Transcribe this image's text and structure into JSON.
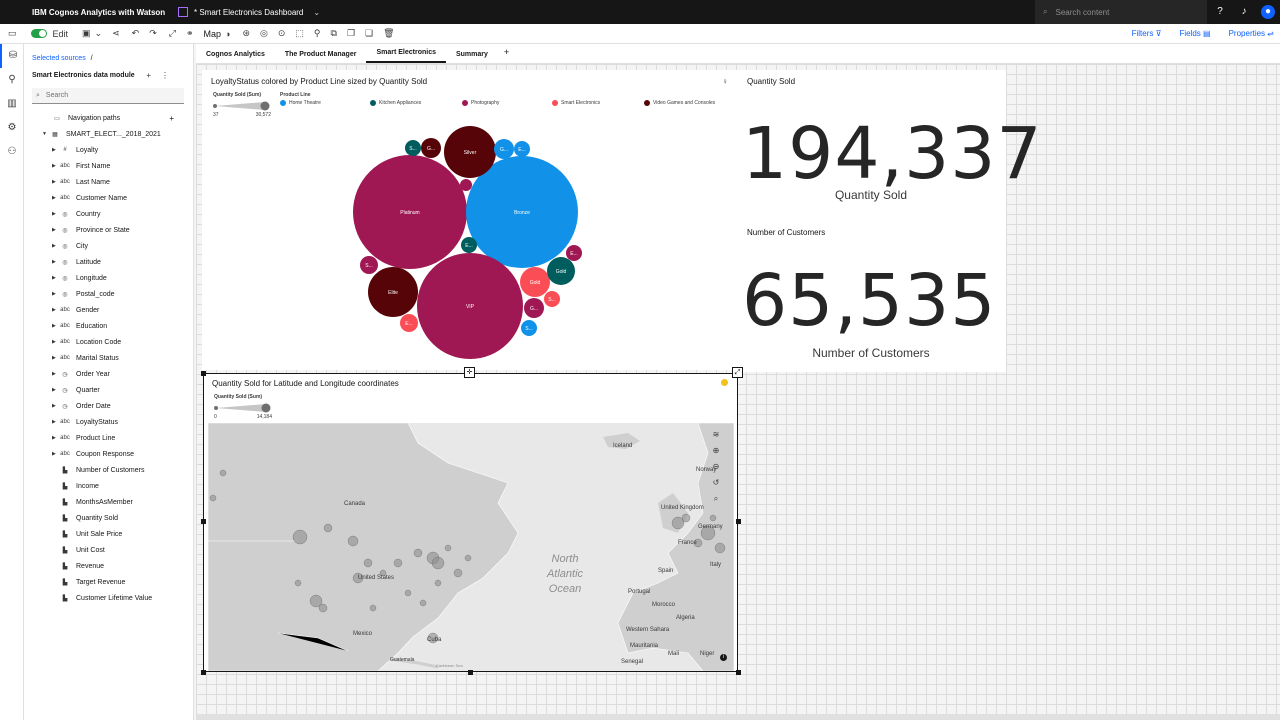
{
  "topbar": {
    "app_title": "IBM Cognos Analytics with Watson",
    "document_title": "* Smart Electronics Dashboard",
    "search_placeholder": "Search content"
  },
  "toolbar": {
    "edit_label": "Edit",
    "map_label": "Map",
    "filters_label": "Filters",
    "fields_label": "Fields",
    "properties_label": "Properties"
  },
  "panel": {
    "breadcrumb": "Selected sources",
    "breadcrumb_sep": "/",
    "module_title": "Smart Electronics data module",
    "search_placeholder": "Search",
    "nav_paths": "Navigation paths",
    "table_name": "SMART_ELECT..._2018_2021",
    "fields": [
      {
        "label": "Loyalty",
        "icon": "#",
        "caret": true
      },
      {
        "label": "First Name",
        "icon": "abc",
        "caret": true
      },
      {
        "label": "Last Name",
        "icon": "abc",
        "caret": true
      },
      {
        "label": "Customer Name",
        "icon": "abc",
        "caret": true
      },
      {
        "label": "Country",
        "icon": "◎",
        "caret": true
      },
      {
        "label": "Province or State",
        "icon": "◎",
        "caret": true
      },
      {
        "label": "City",
        "icon": "◎",
        "caret": true
      },
      {
        "label": "Latitude",
        "icon": "◎",
        "caret": true
      },
      {
        "label": "Longitude",
        "icon": "◎",
        "caret": true
      },
      {
        "label": "Postal_code",
        "icon": "◎",
        "caret": true
      },
      {
        "label": "Gender",
        "icon": "abc",
        "caret": true
      },
      {
        "label": "Education",
        "icon": "abc",
        "caret": true
      },
      {
        "label": "Location Code",
        "icon": "abc",
        "caret": true
      },
      {
        "label": "Marital Status",
        "icon": "abc",
        "caret": true
      },
      {
        "label": "Order Year",
        "icon": "◷",
        "caret": true
      },
      {
        "label": "Quarter",
        "icon": "◷",
        "caret": true
      },
      {
        "label": "Order Date",
        "icon": "◷",
        "caret": true
      },
      {
        "label": "LoyaltyStatus",
        "icon": "abc",
        "caret": true
      },
      {
        "label": "Product Line",
        "icon": "abc",
        "caret": true
      },
      {
        "label": "Coupon Response",
        "icon": "abc",
        "caret": true
      },
      {
        "label": "Number of Customers",
        "icon": "▙",
        "caret": false
      },
      {
        "label": "Income",
        "icon": "▙",
        "caret": false
      },
      {
        "label": "MonthsAsMember",
        "icon": "▙",
        "caret": false
      },
      {
        "label": "Quantity Sold",
        "icon": "▙",
        "caret": false
      },
      {
        "label": "Unit Sale Price",
        "icon": "▙",
        "caret": false
      },
      {
        "label": "Unit Cost",
        "icon": "▙",
        "caret": false
      },
      {
        "label": "Revenue",
        "icon": "▙",
        "caret": false
      },
      {
        "label": "Target Revenue",
        "icon": "▙",
        "caret": false
      },
      {
        "label": "Customer Lifetime Value",
        "icon": "▙",
        "caret": false
      }
    ]
  },
  "tabs": [
    "Cognos Analytics",
    "The Product Manager",
    "Smart Electronics",
    "Summary"
  ],
  "active_tab": "Smart Electronics",
  "colors": {
    "home_theatre": "#1192e8",
    "kitchen_appliances": "#005d5d",
    "photography": "#9f1853",
    "smart_electronics": "#fa4d56",
    "video_games": "#570408"
  },
  "bubble_widget": {
    "title": "LoyaltyStatus colored by Product Line sized by Quantity Sold",
    "size_legend_title": "Quantity Sold (Sum)",
    "size_min": "37",
    "size_max": "30,572",
    "color_legend_title": "Product Line",
    "legend": [
      "Home Theatre",
      "Kitchen Appliances",
      "Photography",
      "Smart Electronics",
      "Video Games and Consoles"
    ]
  },
  "kpi": {
    "qty_title": "Quantity Sold",
    "qty_value": "194,337",
    "qty_sub": "Quantity Sold",
    "cust_title": "Number of Customers",
    "cust_value": "65,535",
    "cust_sub": "Number of Customers"
  },
  "map_widget": {
    "title": "Quantity Sold for Latitude and Longitude coordinates",
    "size_legend_title": "Quantity Sold (Sum)",
    "size_min": "0",
    "size_max": "14,184",
    "labels": [
      "Iceland",
      "United Kingdom",
      "Norway",
      "Germany",
      "France",
      "Spain",
      "Italy",
      "Portugal",
      "Morocco",
      "Algeria",
      "Western Sahara",
      "Mauritania",
      "Mali",
      "Niger",
      "Senegal",
      "Canada",
      "United States",
      "Mexico",
      "Cuba",
      "Guatemala",
      "Caribbean Sea"
    ],
    "ocean_line1": "North",
    "ocean_line2": "Atlantic",
    "ocean_line3": "Ocean"
  }
}
